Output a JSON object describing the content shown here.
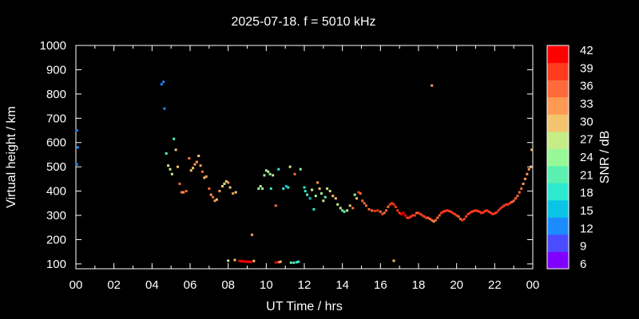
{
  "chart_data": {
    "type": "scatter",
    "title": "2025-07-18. f = 5010 kHz",
    "xlabel": "UT Time / hrs",
    "ylabel": "Virtual height / km",
    "xlim": [
      0,
      24
    ],
    "ylim": [
      80,
      1000
    ],
    "x_ticks": [
      "00",
      "02",
      "04",
      "06",
      "08",
      "10",
      "12",
      "14",
      "16",
      "18",
      "20",
      "22",
      "00"
    ],
    "y_ticks": [
      100,
      200,
      300,
      400,
      500,
      600,
      700,
      800,
      900,
      1000
    ],
    "colorbar": {
      "label": "SNR / dB",
      "ticks": [
        6,
        9,
        12,
        15,
        18,
        21,
        24,
        27,
        30,
        33,
        36,
        39,
        42
      ],
      "colors": [
        "#8000ff",
        "#4b4bff",
        "#1a8cff",
        "#0ac4e6",
        "#2ee8d0",
        "#5cf0b0",
        "#98f898",
        "#c6ec86",
        "#f2c46e",
        "#ff9a55",
        "#ff6a3a",
        "#ff3a1e",
        "#ff0000"
      ]
    },
    "grid": false,
    "legend": "none",
    "points": [
      {
        "x": 0.05,
        "y": 650,
        "snr": 12
      },
      {
        "x": 0.1,
        "y": 580,
        "snr": 12
      },
      {
        "x": 0.05,
        "y": 510,
        "snr": 12
      },
      {
        "x": 4.5,
        "y": 840,
        "snr": 12
      },
      {
        "x": 4.6,
        "y": 850,
        "snr": 12
      },
      {
        "x": 4.65,
        "y": 740,
        "snr": 12
      },
      {
        "x": 4.75,
        "y": 555,
        "snr": 21
      },
      {
        "x": 4.85,
        "y": 505,
        "snr": 27
      },
      {
        "x": 4.95,
        "y": 490,
        "snr": 27
      },
      {
        "x": 5.05,
        "y": 470,
        "snr": 27
      },
      {
        "x": 5.15,
        "y": 615,
        "snr": 21
      },
      {
        "x": 5.25,
        "y": 570,
        "snr": 30
      },
      {
        "x": 5.35,
        "y": 500,
        "snr": 30
      },
      {
        "x": 5.45,
        "y": 430,
        "snr": 36
      },
      {
        "x": 5.55,
        "y": 395,
        "snr": 36
      },
      {
        "x": 5.65,
        "y": 395,
        "snr": 33
      },
      {
        "x": 5.8,
        "y": 400,
        "snr": 36
      },
      {
        "x": 5.95,
        "y": 535,
        "snr": 36
      },
      {
        "x": 6.05,
        "y": 485,
        "snr": 30
      },
      {
        "x": 6.15,
        "y": 495,
        "snr": 30
      },
      {
        "x": 6.25,
        "y": 510,
        "snr": 33
      },
      {
        "x": 6.35,
        "y": 520,
        "snr": 33
      },
      {
        "x": 6.45,
        "y": 545,
        "snr": 30
      },
      {
        "x": 6.55,
        "y": 505,
        "snr": 33
      },
      {
        "x": 6.65,
        "y": 480,
        "snr": 36
      },
      {
        "x": 6.75,
        "y": 455,
        "snr": 30
      },
      {
        "x": 6.85,
        "y": 460,
        "snr": 33
      },
      {
        "x": 7.0,
        "y": 410,
        "snr": 36
      },
      {
        "x": 7.1,
        "y": 385,
        "snr": 33
      },
      {
        "x": 7.2,
        "y": 375,
        "snr": 36
      },
      {
        "x": 7.3,
        "y": 360,
        "snr": 33
      },
      {
        "x": 7.4,
        "y": 365,
        "snr": 30
      },
      {
        "x": 7.55,
        "y": 400,
        "snr": 33
      },
      {
        "x": 7.7,
        "y": 420,
        "snr": 30
      },
      {
        "x": 7.8,
        "y": 430,
        "snr": 27
      },
      {
        "x": 7.9,
        "y": 440,
        "snr": 30
      },
      {
        "x": 8.0,
        "y": 435,
        "snr": 33
      },
      {
        "x": 8.1,
        "y": 415,
        "snr": 30
      },
      {
        "x": 8.25,
        "y": 390,
        "snr": 33
      },
      {
        "x": 8.4,
        "y": 395,
        "snr": 30
      },
      {
        "x": 8.0,
        "y": 113,
        "snr": 27
      },
      {
        "x": 8.35,
        "y": 116,
        "snr": 30
      },
      {
        "x": 8.6,
        "y": 112,
        "snr": 42
      },
      {
        "x": 8.7,
        "y": 111,
        "snr": 42
      },
      {
        "x": 8.8,
        "y": 110,
        "snr": 42
      },
      {
        "x": 8.9,
        "y": 110,
        "snr": 42
      },
      {
        "x": 9.0,
        "y": 109,
        "snr": 42
      },
      {
        "x": 9.1,
        "y": 109,
        "snr": 42
      },
      {
        "x": 9.2,
        "y": 108,
        "snr": 42
      },
      {
        "x": 9.35,
        "y": 112,
        "snr": 30
      },
      {
        "x": 9.25,
        "y": 220,
        "snr": 33
      },
      {
        "x": 9.6,
        "y": 410,
        "snr": 24
      },
      {
        "x": 9.7,
        "y": 420,
        "snr": 27
      },
      {
        "x": 9.8,
        "y": 410,
        "snr": 24
      },
      {
        "x": 9.9,
        "y": 465,
        "snr": 24
      },
      {
        "x": 10.0,
        "y": 485,
        "snr": 24
      },
      {
        "x": 10.1,
        "y": 480,
        "snr": 27
      },
      {
        "x": 10.2,
        "y": 470,
        "snr": 24
      },
      {
        "x": 10.35,
        "y": 465,
        "snr": 27
      },
      {
        "x": 10.25,
        "y": 410,
        "snr": 18
      },
      {
        "x": 10.5,
        "y": 340,
        "snr": 36
      },
      {
        "x": 10.65,
        "y": 490,
        "snr": 18
      },
      {
        "x": 10.9,
        "y": 410,
        "snr": 18
      },
      {
        "x": 11.05,
        "y": 420,
        "snr": 15
      },
      {
        "x": 11.15,
        "y": 415,
        "snr": 18
      },
      {
        "x": 11.25,
        "y": 500,
        "snr": 27
      },
      {
        "x": 11.5,
        "y": 470,
        "snr": 36
      },
      {
        "x": 11.8,
        "y": 490,
        "snr": 24
      },
      {
        "x": 10.5,
        "y": 106,
        "snr": 42
      },
      {
        "x": 10.65,
        "y": 107,
        "snr": 36
      },
      {
        "x": 10.75,
        "y": 109,
        "snr": 30
      },
      {
        "x": 11.3,
        "y": 105,
        "snr": 21
      },
      {
        "x": 11.45,
        "y": 105,
        "snr": 21
      },
      {
        "x": 11.6,
        "y": 107,
        "snr": 18
      },
      {
        "x": 11.7,
        "y": 109,
        "snr": 18
      },
      {
        "x": 12.0,
        "y": 415,
        "snr": 18
      },
      {
        "x": 12.05,
        "y": 400,
        "snr": 18
      },
      {
        "x": 12.15,
        "y": 385,
        "snr": 21
      },
      {
        "x": 12.3,
        "y": 370,
        "snr": 15
      },
      {
        "x": 12.4,
        "y": 405,
        "snr": 27
      },
      {
        "x": 12.5,
        "y": 325,
        "snr": 18
      },
      {
        "x": 12.6,
        "y": 380,
        "snr": 24
      },
      {
        "x": 12.7,
        "y": 435,
        "snr": 33
      },
      {
        "x": 12.8,
        "y": 410,
        "snr": 30
      },
      {
        "x": 12.9,
        "y": 390,
        "snr": 24
      },
      {
        "x": 13.0,
        "y": 360,
        "snr": 27
      },
      {
        "x": 13.1,
        "y": 375,
        "snr": 21
      },
      {
        "x": 13.2,
        "y": 410,
        "snr": 27
      },
      {
        "x": 13.35,
        "y": 400,
        "snr": 27
      },
      {
        "x": 13.5,
        "y": 380,
        "snr": 30
      },
      {
        "x": 13.65,
        "y": 370,
        "snr": 30
      },
      {
        "x": 13.75,
        "y": 345,
        "snr": 27
      },
      {
        "x": 13.9,
        "y": 330,
        "snr": 27
      },
      {
        "x": 14.0,
        "y": 320,
        "snr": 21
      },
      {
        "x": 14.1,
        "y": 315,
        "snr": 21
      },
      {
        "x": 14.25,
        "y": 320,
        "snr": 27
      },
      {
        "x": 14.4,
        "y": 340,
        "snr": 30
      },
      {
        "x": 14.55,
        "y": 330,
        "snr": 36
      },
      {
        "x": 14.65,
        "y": 385,
        "snr": 24
      },
      {
        "x": 14.75,
        "y": 370,
        "snr": 30
      },
      {
        "x": 14.85,
        "y": 395,
        "snr": 39
      },
      {
        "x": 14.95,
        "y": 390,
        "snr": 36
      },
      {
        "x": 15.05,
        "y": 360,
        "snr": 36
      },
      {
        "x": 15.15,
        "y": 350,
        "snr": 36
      },
      {
        "x": 15.25,
        "y": 340,
        "snr": 36
      },
      {
        "x": 15.4,
        "y": 325,
        "snr": 36
      },
      {
        "x": 15.55,
        "y": 320,
        "snr": 36
      },
      {
        "x": 15.7,
        "y": 318,
        "snr": 39
      },
      {
        "x": 15.85,
        "y": 320,
        "snr": 39
      },
      {
        "x": 16.0,
        "y": 315,
        "snr": 36
      },
      {
        "x": 16.1,
        "y": 305,
        "snr": 39
      },
      {
        "x": 16.2,
        "y": 310,
        "snr": 36
      },
      {
        "x": 16.3,
        "y": 320,
        "snr": 36
      },
      {
        "x": 16.4,
        "y": 335,
        "snr": 36
      },
      {
        "x": 16.5,
        "y": 345,
        "snr": 39
      },
      {
        "x": 16.6,
        "y": 350,
        "snr": 39
      },
      {
        "x": 16.7,
        "y": 345,
        "snr": 39
      },
      {
        "x": 16.8,
        "y": 335,
        "snr": 39
      },
      {
        "x": 16.9,
        "y": 320,
        "snr": 39
      },
      {
        "x": 17.0,
        "y": 310,
        "snr": 39
      },
      {
        "x": 17.1,
        "y": 305,
        "snr": 42
      },
      {
        "x": 17.2,
        "y": 310,
        "snr": 42
      },
      {
        "x": 17.3,
        "y": 300,
        "snr": 42
      },
      {
        "x": 17.4,
        "y": 290,
        "snr": 39
      },
      {
        "x": 17.5,
        "y": 290,
        "snr": 39
      },
      {
        "x": 17.6,
        "y": 295,
        "snr": 39
      },
      {
        "x": 17.7,
        "y": 300,
        "snr": 39
      },
      {
        "x": 17.8,
        "y": 300,
        "snr": 39
      },
      {
        "x": 17.9,
        "y": 310,
        "snr": 36
      },
      {
        "x": 18.0,
        "y": 310,
        "snr": 39
      },
      {
        "x": 18.1,
        "y": 305,
        "snr": 39
      },
      {
        "x": 18.2,
        "y": 300,
        "snr": 39
      },
      {
        "x": 18.3,
        "y": 295,
        "snr": 39
      },
      {
        "x": 18.4,
        "y": 290,
        "snr": 39
      },
      {
        "x": 18.5,
        "y": 290,
        "snr": 36
      },
      {
        "x": 18.6,
        "y": 285,
        "snr": 36
      },
      {
        "x": 18.7,
        "y": 280,
        "snr": 36
      },
      {
        "x": 18.8,
        "y": 275,
        "snr": 33
      },
      {
        "x": 18.9,
        "y": 280,
        "snr": 36
      },
      {
        "x": 19.0,
        "y": 290,
        "snr": 36
      },
      {
        "x": 19.1,
        "y": 300,
        "snr": 36
      },
      {
        "x": 19.2,
        "y": 310,
        "snr": 39
      },
      {
        "x": 19.3,
        "y": 315,
        "snr": 39
      },
      {
        "x": 19.4,
        "y": 318,
        "snr": 39
      },
      {
        "x": 19.5,
        "y": 320,
        "snr": 39
      },
      {
        "x": 19.6,
        "y": 318,
        "snr": 39
      },
      {
        "x": 19.7,
        "y": 315,
        "snr": 39
      },
      {
        "x": 19.8,
        "y": 310,
        "snr": 39
      },
      {
        "x": 19.9,
        "y": 305,
        "snr": 39
      },
      {
        "x": 20.0,
        "y": 300,
        "snr": 39
      },
      {
        "x": 20.1,
        "y": 295,
        "snr": 36
      },
      {
        "x": 20.2,
        "y": 285,
        "snr": 36
      },
      {
        "x": 20.3,
        "y": 280,
        "snr": 39
      },
      {
        "x": 20.4,
        "y": 285,
        "snr": 39
      },
      {
        "x": 20.5,
        "y": 295,
        "snr": 39
      },
      {
        "x": 20.6,
        "y": 305,
        "snr": 39
      },
      {
        "x": 20.7,
        "y": 310,
        "snr": 39
      },
      {
        "x": 20.8,
        "y": 315,
        "snr": 39
      },
      {
        "x": 20.9,
        "y": 318,
        "snr": 39
      },
      {
        "x": 21.0,
        "y": 320,
        "snr": 39
      },
      {
        "x": 21.1,
        "y": 318,
        "snr": 39
      },
      {
        "x": 21.2,
        "y": 315,
        "snr": 39
      },
      {
        "x": 21.3,
        "y": 310,
        "snr": 39
      },
      {
        "x": 21.4,
        "y": 312,
        "snr": 39
      },
      {
        "x": 21.5,
        "y": 318,
        "snr": 39
      },
      {
        "x": 21.6,
        "y": 320,
        "snr": 39
      },
      {
        "x": 21.7,
        "y": 315,
        "snr": 39
      },
      {
        "x": 21.8,
        "y": 310,
        "snr": 39
      },
      {
        "x": 21.9,
        "y": 305,
        "snr": 39
      },
      {
        "x": 22.0,
        "y": 308,
        "snr": 39
      },
      {
        "x": 22.1,
        "y": 312,
        "snr": 39
      },
      {
        "x": 22.2,
        "y": 320,
        "snr": 39
      },
      {
        "x": 22.3,
        "y": 328,
        "snr": 39
      },
      {
        "x": 22.4,
        "y": 335,
        "snr": 39
      },
      {
        "x": 22.5,
        "y": 340,
        "snr": 39
      },
      {
        "x": 22.6,
        "y": 345,
        "snr": 39
      },
      {
        "x": 22.7,
        "y": 345,
        "snr": 39
      },
      {
        "x": 22.8,
        "y": 350,
        "snr": 39
      },
      {
        "x": 22.9,
        "y": 355,
        "snr": 36
      },
      {
        "x": 23.0,
        "y": 360,
        "snr": 36
      },
      {
        "x": 23.1,
        "y": 370,
        "snr": 36
      },
      {
        "x": 23.2,
        "y": 380,
        "snr": 36
      },
      {
        "x": 23.3,
        "y": 395,
        "snr": 36
      },
      {
        "x": 23.4,
        "y": 410,
        "snr": 36
      },
      {
        "x": 23.5,
        "y": 430,
        "snr": 33
      },
      {
        "x": 23.6,
        "y": 450,
        "snr": 33
      },
      {
        "x": 23.7,
        "y": 470,
        "snr": 33
      },
      {
        "x": 23.8,
        "y": 490,
        "snr": 33
      },
      {
        "x": 23.9,
        "y": 500,
        "snr": 30
      },
      {
        "x": 23.95,
        "y": 570,
        "snr": 30
      },
      {
        "x": 16.7,
        "y": 113,
        "snr": 30
      },
      {
        "x": 18.7,
        "y": 835,
        "snr": 33
      }
    ]
  }
}
